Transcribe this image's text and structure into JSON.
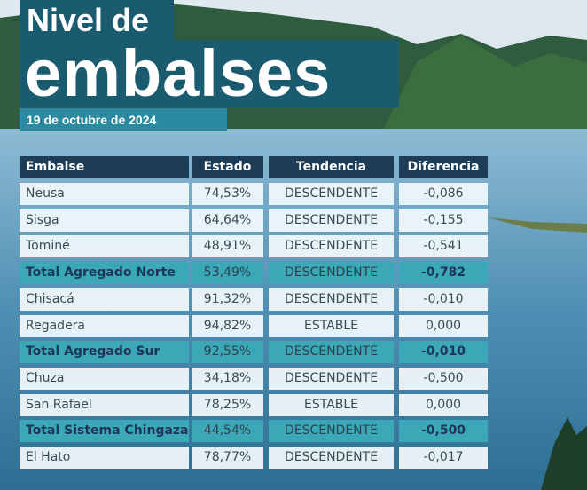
{
  "header": {
    "title_line1": "Nivel de",
    "title_line2": "embalses",
    "date": "19 de octubre de 2024"
  },
  "table": {
    "columns": [
      "Embalse",
      "Estado",
      "Tendencia",
      "Diferencia"
    ],
    "rows": [
      [
        "Neusa",
        "74,53%",
        "DESCENDENTE",
        "-0,086"
      ],
      [
        "Sisga",
        "64,64%",
        "DESCENDENTE",
        "-0,155"
      ],
      [
        "Tominé",
        "48,91%",
        "DESCENDENTE",
        "-0,541"
      ],
      [
        "Total Agregado Norte",
        "53,49%",
        "DESCENDENTE",
        "-0,782"
      ],
      [
        "Chisacá",
        "91,32%",
        "DESCENDENTE",
        "-0,010"
      ],
      [
        "Regadera",
        "94,82%",
        "ESTABLE",
        "0,000"
      ],
      [
        "Total Agregado Sur",
        "92,55%",
        "DESCENDENTE",
        "-0,010"
      ],
      [
        "Chuza",
        "34,18%",
        "DESCENDENTE",
        "-0,500"
      ],
      [
        "San Rafael",
        "78,25%",
        "ESTABLE",
        "0,000"
      ],
      [
        "Total Sistema Chingaza",
        "44,54%",
        "DESCENDENTE",
        "-0,500"
      ],
      [
        "El Hato",
        "78,77%",
        "DESCENDENTE",
        "-0,017"
      ]
    ]
  }
}
